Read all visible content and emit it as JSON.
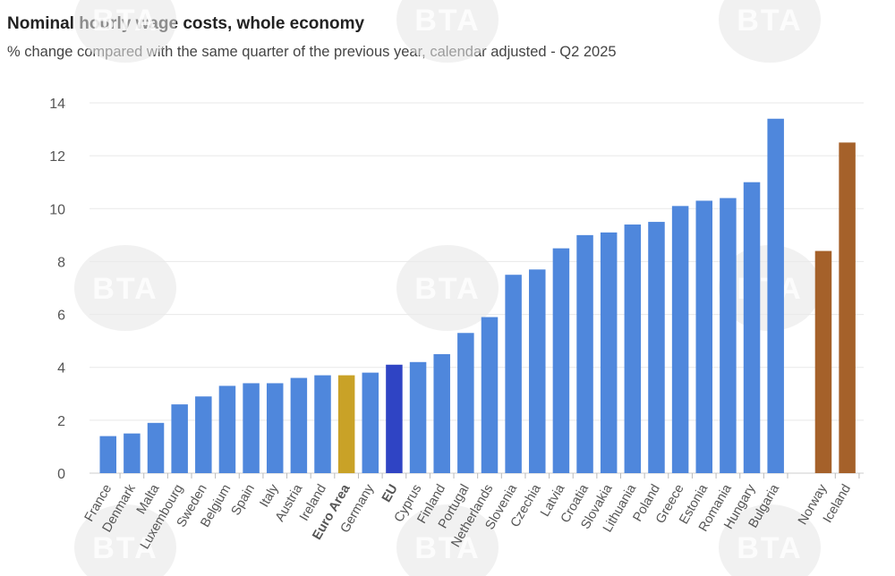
{
  "watermark": "BTA",
  "colors": {
    "default": "#4f87dc",
    "euro_area": "#c9a227",
    "eu": "#2f44c4",
    "non_eu": "#a5612a",
    "grid": "#e8e8e8"
  },
  "chart_data": {
    "type": "bar",
    "title": "Nominal hourly wage costs, whole economy",
    "subtitle": "% change compared with the same quarter of the previous year, calendar adjusted - Q2 2025",
    "xlabel": "",
    "ylabel": "",
    "ylim": [
      0,
      14
    ],
    "yticks": [
      0,
      2,
      4,
      6,
      8,
      10,
      12,
      14
    ],
    "grid": true,
    "categories": [
      "France",
      "Denmark",
      "Malta",
      "Luxembourg",
      "Sweden",
      "Belgium",
      "Spain",
      "Italy",
      "Austria",
      "Ireland",
      "Euro Area",
      "Germany",
      "EU",
      "Cyprus",
      "Finland",
      "Portugal",
      "Netherlands",
      "Slovenia",
      "Czechia",
      "Latvia",
      "Croatia",
      "Slovakia",
      "Lithuania",
      "Poland",
      "Greece",
      "Estonia",
      "Romania",
      "Hungary",
      "Bulgaria",
      "",
      "Norway",
      "Iceland"
    ],
    "values": [
      1.4,
      1.5,
      1.9,
      2.6,
      2.9,
      3.3,
      3.4,
      3.4,
      3.6,
      3.7,
      3.7,
      3.8,
      4.1,
      4.2,
      4.5,
      5.3,
      5.9,
      7.5,
      7.7,
      8.5,
      9.0,
      9.1,
      9.4,
      9.5,
      10.1,
      10.3,
      10.4,
      11.0,
      13.4,
      null,
      8.4,
      12.5
    ],
    "bold_categories": [
      "Euro Area",
      "EU"
    ],
    "bar_color_groups": {
      "euro_area": [
        "Euro Area"
      ],
      "eu": [
        "EU"
      ],
      "non_eu": [
        "Norway",
        "Iceland"
      ]
    }
  }
}
